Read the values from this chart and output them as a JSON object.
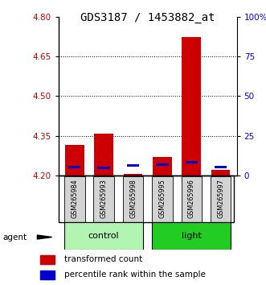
{
  "title": "GDS3187 / 1453882_at",
  "samples": [
    "GSM265984",
    "GSM265993",
    "GSM265998",
    "GSM265995",
    "GSM265996",
    "GSM265997"
  ],
  "bar_base": 4.2,
  "red_tops": [
    4.315,
    4.358,
    4.205,
    4.27,
    4.725,
    4.222
  ],
  "blue_tops": [
    4.228,
    4.224,
    4.234,
    4.237,
    4.245,
    4.228
  ],
  "ylim_left": [
    4.2,
    4.8
  ],
  "ylim_right": [
    0,
    100
  ],
  "yticks_left": [
    4.2,
    4.35,
    4.5,
    4.65,
    4.8
  ],
  "yticks_right": [
    0,
    25,
    50,
    75,
    100
  ],
  "ytick_labels_right": [
    "0",
    "25",
    "50",
    "75",
    "100%"
  ],
  "bar_width": 0.65,
  "red_color": "#cc0000",
  "blue_color": "#0000cc",
  "title_fontsize": 10,
  "tick_fontsize": 7.5,
  "legend_fontsize": 7.5,
  "ctrl_color": "#b2f5b2",
  "light_color": "#22cc22"
}
